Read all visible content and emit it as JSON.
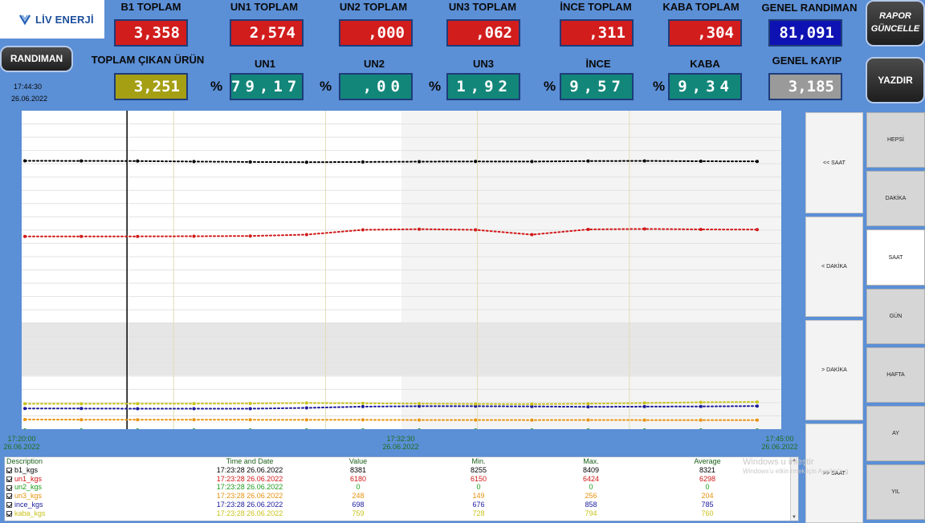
{
  "logo": {
    "text": "LİV ENERJİ"
  },
  "headers": {
    "b1_total": "B1 TOPLAM",
    "un1_total": "UN1 TOPLAM",
    "un2_total": "UN2 TOPLAM",
    "un3_total": "UN3 TOPLAM",
    "ince_total": "İNCE TOPLAM",
    "kaba_total": "KABA TOPLAM",
    "general_yield": "GENEL RANDIMAN",
    "total_output": "TOPLAM ÇIKAN ÜRÜN",
    "un1": "UN1",
    "un2": "UN2",
    "un3": "UN3",
    "ince": "İNCE",
    "kaba": "KABA",
    "general_loss": "GENEL KAYIP"
  },
  "values": {
    "b1_total": "3,358",
    "un1_total": "2,574",
    "un2_total": ",000",
    "un3_total": ",062",
    "ince_total": ",311",
    "kaba_total": ",304",
    "general_yield": "81,091",
    "total_output": "3,251",
    "un1": "79,17",
    "un2": ",00",
    "un3": "1,92",
    "ince": "9,57",
    "kaba": "9,34",
    "general_loss": "3,185"
  },
  "percent_sign": "%",
  "buttons": {
    "randiman": "RANDIMAN",
    "report_update_line1": "RAPOR",
    "report_update_line2": "GÜNCELLE",
    "print": "YAZDIR"
  },
  "clock": {
    "time": "17:44:30",
    "date": "26.06.2022"
  },
  "colors": {
    "b1": "#000000",
    "un1": "#d11818",
    "un2": "#1f9a1f",
    "un3": "#e8930f",
    "ince": "#1a1a9a",
    "kaba": "#c9c21a"
  },
  "chart_data": {
    "type": "line",
    "x_ticks": [
      {
        "time": "17:20:00",
        "date": "26.06.2022"
      },
      {
        "time": "17:32:30",
        "date": "26.06.2022"
      },
      {
        "time": "17:45:00",
        "date": "26.06.2022"
      }
    ],
    "xlim": [
      "17:20:00",
      "17:45:00"
    ],
    "cursor_time": "17:23:28",
    "grid": true,
    "series": [
      {
        "name": "b1_kgs",
        "values": [
          8381,
          8380,
          8378,
          8372,
          8366,
          8363,
          8366,
          8370,
          8373,
          8372,
          8378,
          8380,
          8376,
          8374
        ]
      },
      {
        "name": "un1_kgs",
        "values": [
          6180,
          6180,
          6180,
          6182,
          6185,
          6200,
          6255,
          6262,
          6255,
          6200,
          6260,
          6265,
          6260,
          6258
        ]
      },
      {
        "name": "un2_kgs",
        "values": [
          0,
          0,
          0,
          0,
          0,
          0,
          0,
          0,
          0,
          0,
          0,
          0,
          0,
          0
        ]
      },
      {
        "name": "un3_kgs",
        "values": [
          248,
          247,
          246,
          247,
          246,
          245,
          245,
          244,
          244,
          243,
          244,
          243,
          243,
          243
        ]
      },
      {
        "name": "ince_kgs",
        "values": [
          698,
          698,
          697,
          697,
          697,
          705,
          718,
          722,
          722,
          720,
          716,
          718,
          720,
          724
        ]
      },
      {
        "name": "kaba_kgs",
        "values": [
          759,
          759,
          760,
          760,
          761,
          764,
          762,
          760,
          758,
          757,
          760,
          764,
          768,
          770
        ]
      }
    ]
  },
  "nav_buttons": [
    "<< SAAT",
    "< DAKİKA",
    "> DAKİKA",
    ">> SAAT"
  ],
  "period_buttons": [
    "HEPSİ",
    "DAKİKA",
    "SAAT",
    "GÜN",
    "HAFTA",
    "AY",
    "YIL"
  ],
  "table": {
    "columns": [
      "Description",
      "Time and Date",
      "Value",
      "Min.",
      "Max.",
      "Average"
    ],
    "rows": [
      {
        "desc": "b1_kgs",
        "time": "17:23:28 26.06.2022",
        "value": "8381",
        "min": "8255",
        "max": "8409",
        "avg": "8321",
        "color": "#000000"
      },
      {
        "desc": "un1_kgs",
        "time": "17:23:28 26.06.2022",
        "value": "6180",
        "min": "6150",
        "max": "6424",
        "avg": "6298",
        "color": "#d11818"
      },
      {
        "desc": "un2_kgs",
        "time": "17:23:28 26.06.2022",
        "value": "0",
        "min": "0",
        "max": "0",
        "avg": "0",
        "color": "#1f9a1f"
      },
      {
        "desc": "un3_kgs",
        "time": "17:23:28 26.06.2022",
        "value": "248",
        "min": "149",
        "max": "256",
        "avg": "204",
        "color": "#e8930f"
      },
      {
        "desc": "ince_kgs",
        "time": "17:23:28 26.06.2022",
        "value": "698",
        "min": "676",
        "max": "858",
        "avg": "785",
        "color": "#1a1a9a"
      },
      {
        "desc": "kaba_kgs",
        "time": "17:23:28 26.06.2022",
        "value": "759",
        "min": "728",
        "max": "794",
        "avg": "760",
        "color": "#c9c21a"
      }
    ]
  },
  "watermark": {
    "line1": "Windows u    inleştir",
    "line2": "Windows'u etkin    rmek için Ayarlar'a g"
  }
}
